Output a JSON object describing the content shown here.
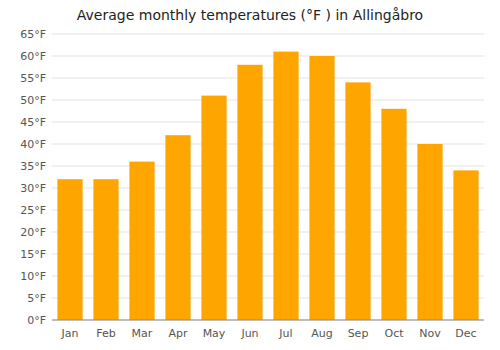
{
  "chart_data": {
    "type": "bar",
    "title": "Average monthly temperatures (°F ) in Allingåbro",
    "categories": [
      "Jan",
      "Feb",
      "Mar",
      "Apr",
      "May",
      "Jun",
      "Jul",
      "Aug",
      "Sep",
      "Oct",
      "Nov",
      "Dec"
    ],
    "values": [
      32,
      32,
      36,
      42,
      51,
      58,
      61,
      60,
      54,
      48,
      40,
      34
    ],
    "color": "#FFA500",
    "ylim": [
      0,
      65
    ],
    "yticks": [
      {
        "value": 0,
        "label": "0°F"
      },
      {
        "value": 5,
        "label": "5°F"
      },
      {
        "value": 10,
        "label": "10°F"
      },
      {
        "value": 15,
        "label": "15°F"
      },
      {
        "value": 20,
        "label": "20°F"
      },
      {
        "value": 25,
        "label": "25°F"
      },
      {
        "value": 30,
        "label": "30°F"
      },
      {
        "value": 35,
        "label": "35°F"
      },
      {
        "value": 40,
        "label": "40°F"
      },
      {
        "value": 45,
        "label": "45°F"
      },
      {
        "value": 50,
        "label": "50°F"
      },
      {
        "value": 55,
        "label": "55°F"
      },
      {
        "value": 60,
        "label": "60°F"
      },
      {
        "value": 65,
        "label": "65°F"
      }
    ],
    "grid": true
  }
}
